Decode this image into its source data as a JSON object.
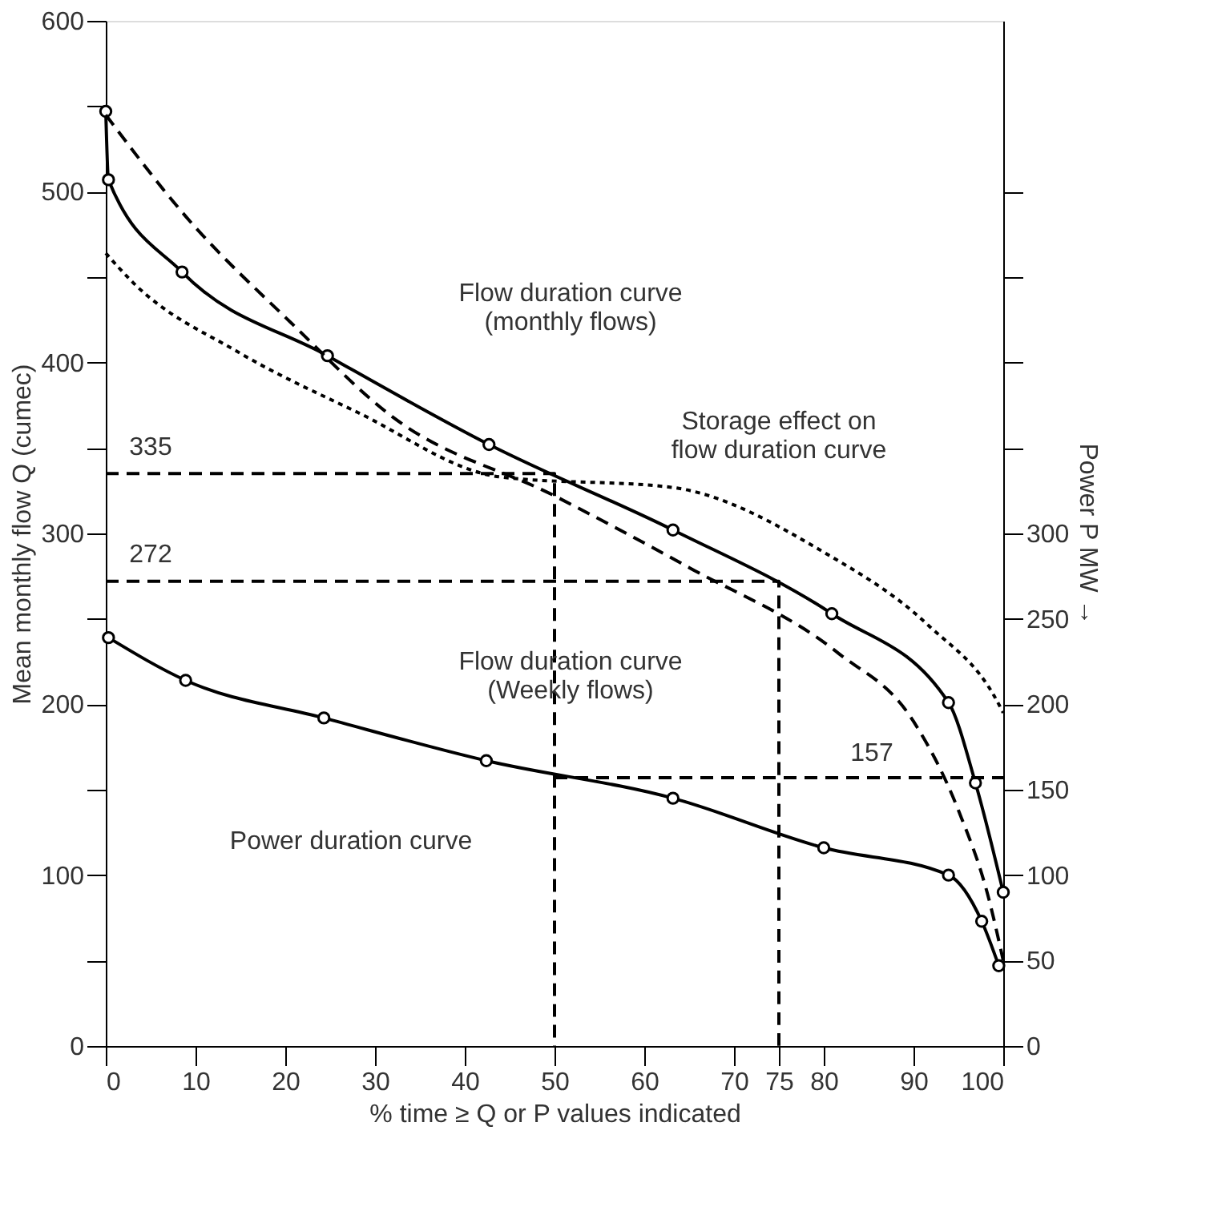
{
  "chart_data": {
    "type": "line",
    "xlabel": "% time ≥ Q or P values indicated",
    "ylabel": "Mean monthly flow Q (cumec)",
    "y2label": "Power P MW →",
    "xlim": [
      0,
      100
    ],
    "xticks": [
      0,
      10,
      20,
      30,
      40,
      50,
      60,
      70,
      75,
      80,
      90,
      100
    ],
    "ylim": [
      0,
      600
    ],
    "yticks": [
      0,
      {
        "value": 50,
        "label": null
      },
      100,
      {
        "value": 150,
        "label": null
      },
      200,
      {
        "value": 250,
        "label": null
      },
      300,
      {
        "value": 350,
        "label": null
      },
      400,
      {
        "value": 450,
        "label": null
      },
      500,
      {
        "value": 550,
        "label": null
      },
      600
    ],
    "y2lim": [
      0,
      600
    ],
    "y2ticks": [
      0,
      50,
      100,
      150,
      200,
      250,
      300,
      {
        "value": 350,
        "label": null
      },
      {
        "value": 400,
        "label": null
      },
      {
        "value": 450,
        "label": null
      },
      {
        "value": 500,
        "label": null
      }
    ],
    "grid": false,
    "series": [
      {
        "color": "#000000",
        "line_style": "solid",
        "marker": "circle",
        "x": [
          0,
          0.3,
          8.5,
          24.7,
          42.7,
          63.2,
          80.9,
          93.9,
          96.9,
          100
        ],
        "values": [
          547,
          507,
          453,
          404,
          352,
          302,
          253,
          201,
          154,
          90
        ]
      },
      {
        "color": "#000000",
        "line_style": "dashed",
        "marker": "none",
        "x": [
          0,
          9,
          20.5,
          32,
          50,
          65,
          81.6,
          90,
          95,
          98.4,
          100
        ],
        "values": [
          545,
          485,
          424,
          368,
          322,
          280,
          230,
          190,
          138,
          86,
          50
        ]
      },
      {
        "color": "#000000",
        "line_style": "dotted",
        "marker": "none",
        "x": [
          0,
          3,
          14.8,
          28,
          44,
          63,
          80,
          91.7,
          99.3,
          100
        ],
        "values": [
          464,
          447,
          406,
          371,
          333,
          327,
          289,
          246,
          202,
          195
        ]
      },
      {
        "axis": "y2",
        "color": "#000000",
        "line_style": "solid",
        "marker": "circle",
        "x": [
          0.3,
          8.9,
          24.3,
          42.4,
          63.2,
          80,
          93.9,
          97.6,
          99.5
        ],
        "values": [
          239,
          214,
          192,
          167,
          145,
          116,
          100,
          73,
          47
        ]
      },
      {
        "color": "#000000",
        "line_style": "dashed",
        "marker": "none",
        "x": [
          0,
          50,
          50
        ],
        "values": [
          335,
          335,
          0
        ]
      },
      {
        "color": "#000000",
        "line_style": "dashed",
        "marker": "none",
        "x": [
          0,
          75,
          75
        ],
        "values": [
          272,
          272,
          0
        ]
      },
      {
        "axis": "y2",
        "color": "#000000",
        "line_style": "dashed",
        "marker": "none",
        "x": [
          50,
          100
        ],
        "values": [
          157,
          157
        ]
      }
    ],
    "annotations": [
      "335",
      "272",
      "157",
      "Flow duration curve\n(monthly flows)",
      "Storage effect on\nflow duration curve",
      "Flow duration curve\n(Weekly flows)",
      "Power duration curve"
    ]
  }
}
